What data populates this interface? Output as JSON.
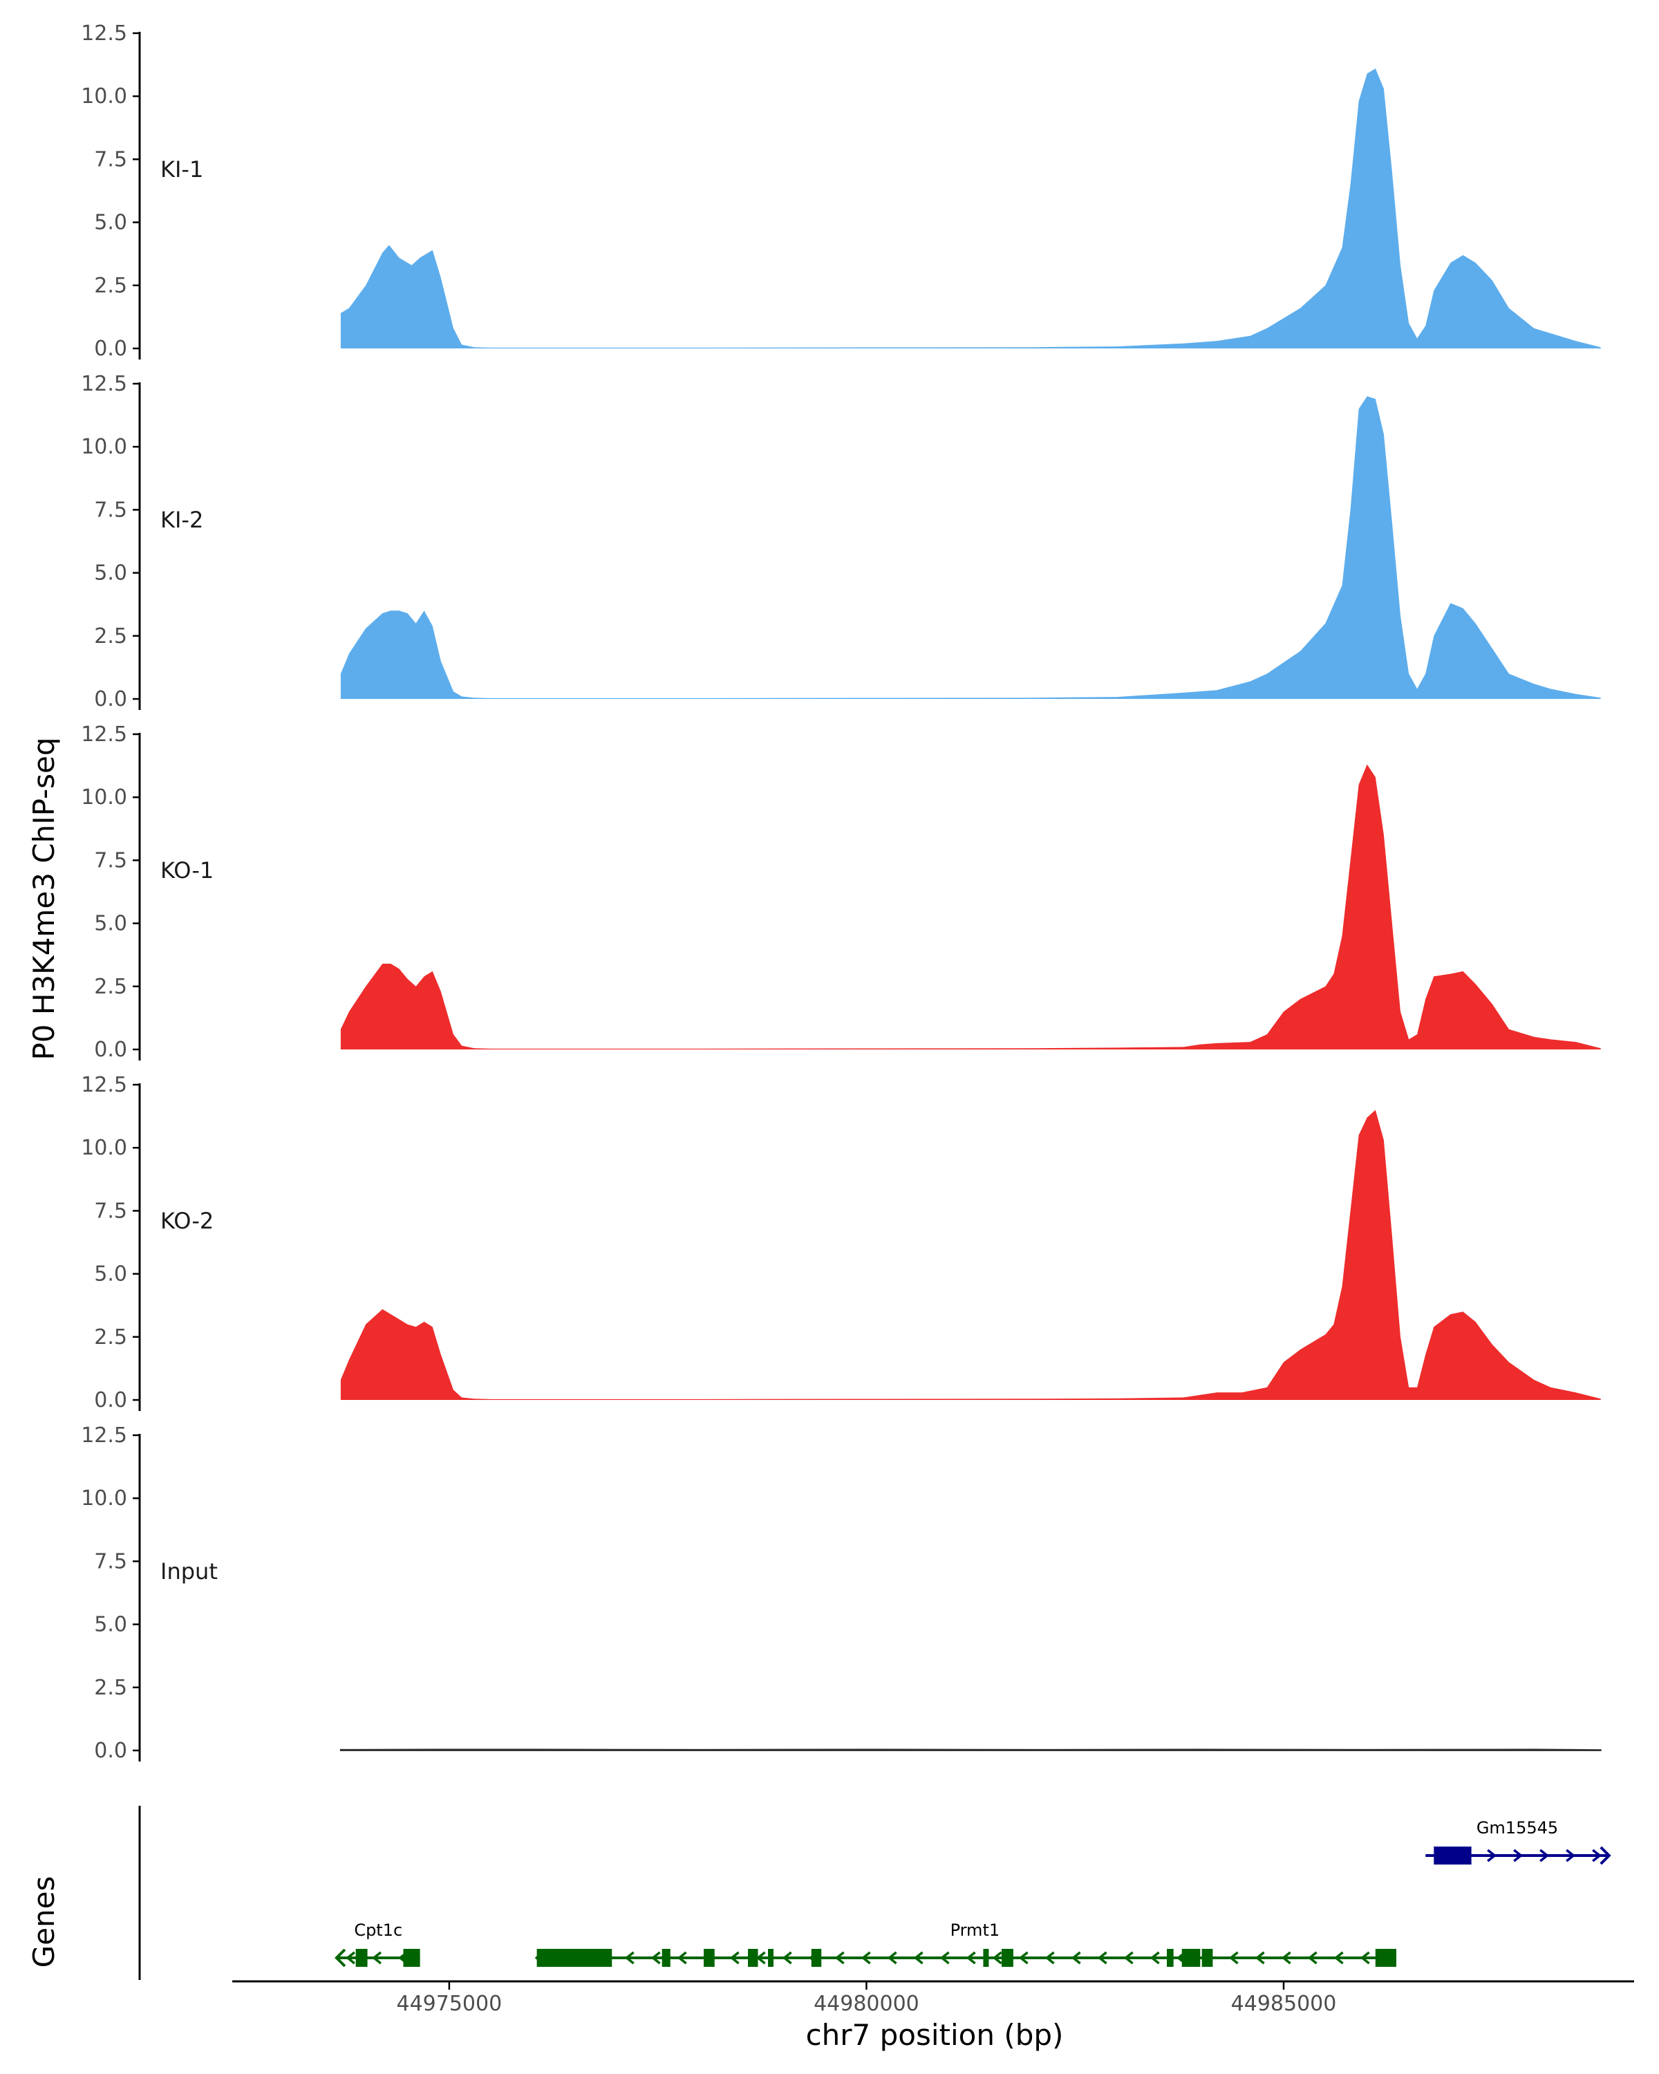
{
  "chart_data": {
    "type": "area",
    "title": "",
    "ylabel": "P0 H3K4me3 ChIP-seq",
    "xlabel": "chr7 position (bp)",
    "genes_label": "Genes",
    "chrom": "chr7",
    "xlim": [
      44972400,
      44989200
    ],
    "data_range": [
      44973700,
      44988800
    ],
    "ylim": [
      0,
      12.5
    ],
    "y_ticks": [
      "0.0",
      "2.5",
      "5.0",
      "7.5",
      "10.0",
      "12.5"
    ],
    "x_ticks": [
      {
        "value": 44975000,
        "label": "44975000"
      },
      {
        "value": 44980000,
        "label": "44980000"
      },
      {
        "value": 44985000,
        "label": "44985000"
      }
    ],
    "colors": {
      "KI": "#5DADEC",
      "KO": "#EE2C2C",
      "Input": "#666666",
      "gene_minus": "#006400",
      "gene_plus": "#00008B",
      "axis": "#000000"
    },
    "tracks": [
      {
        "name": "KI-1",
        "color": "#5DADEC",
        "x": [
          44973700,
          44973800,
          44974000,
          44974200,
          44974280,
          44974400,
          44974550,
          44974650,
          44974800,
          44974900,
          44975050,
          44975150,
          44975300,
          44975500,
          44976500,
          44978000,
          44980000,
          44982000,
          44983000,
          44983800,
          44984200,
          44984600,
          44984800,
          44985200,
          44985500,
          44985700,
          44985800,
          44985900,
          44986000,
          44986100,
          44986200,
          44986300,
          44986400,
          44986500,
          44986600,
          44986700,
          44986800,
          44987000,
          44987150,
          44987300,
          44987500,
          44987700,
          44988000,
          44988200,
          44988500,
          44988800
        ],
        "values": [
          1.4,
          1.6,
          2.5,
          3.8,
          4.1,
          3.6,
          3.3,
          3.6,
          3.9,
          2.8,
          0.8,
          0.15,
          0.05,
          0.03,
          0.03,
          0.03,
          0.04,
          0.05,
          0.08,
          0.2,
          0.3,
          0.5,
          0.8,
          1.6,
          2.5,
          4.0,
          6.5,
          9.8,
          10.9,
          11.1,
          10.3,
          7.0,
          3.3,
          1.0,
          0.4,
          0.9,
          2.3,
          3.4,
          3.7,
          3.4,
          2.7,
          1.6,
          0.8,
          0.6,
          0.3,
          0.05
        ]
      },
      {
        "name": "KI-2",
        "color": "#5DADEC",
        "x": [
          44973700,
          44973800,
          44974000,
          44974200,
          44974300,
          44974400,
          44974500,
          44974600,
          44974700,
          44974800,
          44974900,
          44975050,
          44975150,
          44975300,
          44975500,
          44976500,
          44978000,
          44980000,
          44982000,
          44983000,
          44983800,
          44984200,
          44984600,
          44984800,
          44985200,
          44985500,
          44985700,
          44985800,
          44985900,
          44986000,
          44986100,
          44986200,
          44986300,
          44986400,
          44986500,
          44986600,
          44986700,
          44986800,
          44987000,
          44987150,
          44987300,
          44987500,
          44987700,
          44988000,
          44988200,
          44988500,
          44988800
        ],
        "values": [
          1.0,
          1.8,
          2.8,
          3.4,
          3.5,
          3.5,
          3.4,
          3.0,
          3.5,
          2.9,
          1.5,
          0.3,
          0.1,
          0.05,
          0.03,
          0.03,
          0.03,
          0.04,
          0.05,
          0.08,
          0.25,
          0.35,
          0.7,
          1.0,
          1.9,
          3.0,
          4.5,
          7.5,
          11.5,
          12.0,
          11.9,
          10.5,
          7.0,
          3.3,
          1.0,
          0.4,
          1.0,
          2.5,
          3.8,
          3.6,
          3.0,
          2.0,
          1.0,
          0.6,
          0.4,
          0.2,
          0.05
        ]
      },
      {
        "name": "KO-1",
        "color": "#EE2C2C",
        "x": [
          44973700,
          44973800,
          44974000,
          44974200,
          44974300,
          44974400,
          44974500,
          44974600,
          44974700,
          44974800,
          44974900,
          44975050,
          44975150,
          44975300,
          44975500,
          44976500,
          44978000,
          44980000,
          44982000,
          44983000,
          44983800,
          44984000,
          44984200,
          44984600,
          44984800,
          44985000,
          44985200,
          44985500,
          44985600,
          44985700,
          44985800,
          44985900,
          44986000,
          44986100,
          44986200,
          44986300,
          44986400,
          44986500,
          44986600,
          44986700,
          44986800,
          44987000,
          44987150,
          44987300,
          44987500,
          44987700,
          44988000,
          44988200,
          44988500,
          44988800
        ],
        "values": [
          0.8,
          1.5,
          2.5,
          3.4,
          3.4,
          3.2,
          2.8,
          2.5,
          2.9,
          3.1,
          2.3,
          0.6,
          0.15,
          0.05,
          0.03,
          0.03,
          0.03,
          0.04,
          0.05,
          0.07,
          0.1,
          0.2,
          0.25,
          0.3,
          0.6,
          1.5,
          2.0,
          2.5,
          3.0,
          4.5,
          7.5,
          10.5,
          11.3,
          10.8,
          8.5,
          5.0,
          1.5,
          0.4,
          0.6,
          2.0,
          2.9,
          3.0,
          3.1,
          2.6,
          1.8,
          0.8,
          0.5,
          0.4,
          0.3,
          0.05
        ]
      },
      {
        "name": "KO-2",
        "color": "#EE2C2C",
        "x": [
          44973700,
          44973800,
          44974000,
          44974200,
          44974300,
          44974400,
          44974500,
          44974600,
          44974700,
          44974800,
          44974900,
          44975050,
          44975150,
          44975300,
          44975500,
          44976500,
          44978000,
          44980000,
          44982000,
          44983000,
          44983800,
          44984000,
          44984200,
          44984500,
          44984800,
          44985000,
          44985200,
          44985500,
          44985600,
          44985700,
          44985800,
          44985900,
          44986000,
          44986100,
          44986200,
          44986300,
          44986400,
          44986500,
          44986600,
          44986700,
          44986800,
          44987000,
          44987150,
          44987300,
          44987500,
          44987700,
          44988000,
          44988200,
          44988500,
          44988800
        ],
        "values": [
          0.8,
          1.6,
          3.0,
          3.6,
          3.4,
          3.2,
          3.0,
          2.9,
          3.1,
          2.9,
          1.8,
          0.4,
          0.1,
          0.05,
          0.03,
          0.03,
          0.03,
          0.04,
          0.05,
          0.06,
          0.1,
          0.2,
          0.3,
          0.3,
          0.5,
          1.5,
          2.0,
          2.6,
          3.0,
          4.5,
          7.5,
          10.5,
          11.2,
          11.5,
          10.3,
          6.5,
          2.5,
          0.5,
          0.5,
          1.8,
          2.9,
          3.4,
          3.5,
          3.1,
          2.2,
          1.5,
          0.8,
          0.5,
          0.3,
          0.05
        ]
      },
      {
        "name": "Input",
        "color": "#555555",
        "x": [
          44973700,
          44975000,
          44976000,
          44978000,
          44980000,
          44982000,
          44984000,
          44986000,
          44988000,
          44988800
        ],
        "values": [
          0.03,
          0.04,
          0.04,
          0.03,
          0.04,
          0.03,
          0.04,
          0.03,
          0.04,
          0.02
        ]
      }
    ],
    "genes": [
      {
        "name": "Cpt1c",
        "strand": "-",
        "color": "#006400",
        "start": 44973650,
        "end": 44974650,
        "exons": [
          [
            44973880,
            44974020
          ],
          [
            44974450,
            44974650
          ]
        ],
        "label_pos": 44974150
      },
      {
        "name": "Prmt1",
        "strand": "-",
        "color": "#006400",
        "start": 44976050,
        "end": 44986350,
        "exons": [
          [
            44976050,
            44976950
          ],
          [
            44977550,
            44977650
          ],
          [
            44978050,
            44978180
          ],
          [
            44978580,
            44978700
          ],
          [
            44978820,
            44978880
          ],
          [
            44979340,
            44979460
          ],
          [
            44981400,
            44981460
          ],
          [
            44981620,
            44981760
          ],
          [
            44983600,
            44983680
          ],
          [
            44983780,
            44984000
          ],
          [
            44984020,
            44984150
          ],
          [
            44986100,
            44986350
          ]
        ],
        "label_pos": 44981300
      },
      {
        "name": "Gm15545",
        "strand": "+",
        "color": "#00008B",
        "start": 44986700,
        "end": 44988900,
        "exons": [
          [
            44986800,
            44987250
          ]
        ],
        "label_pos": 44987800
      }
    ]
  }
}
